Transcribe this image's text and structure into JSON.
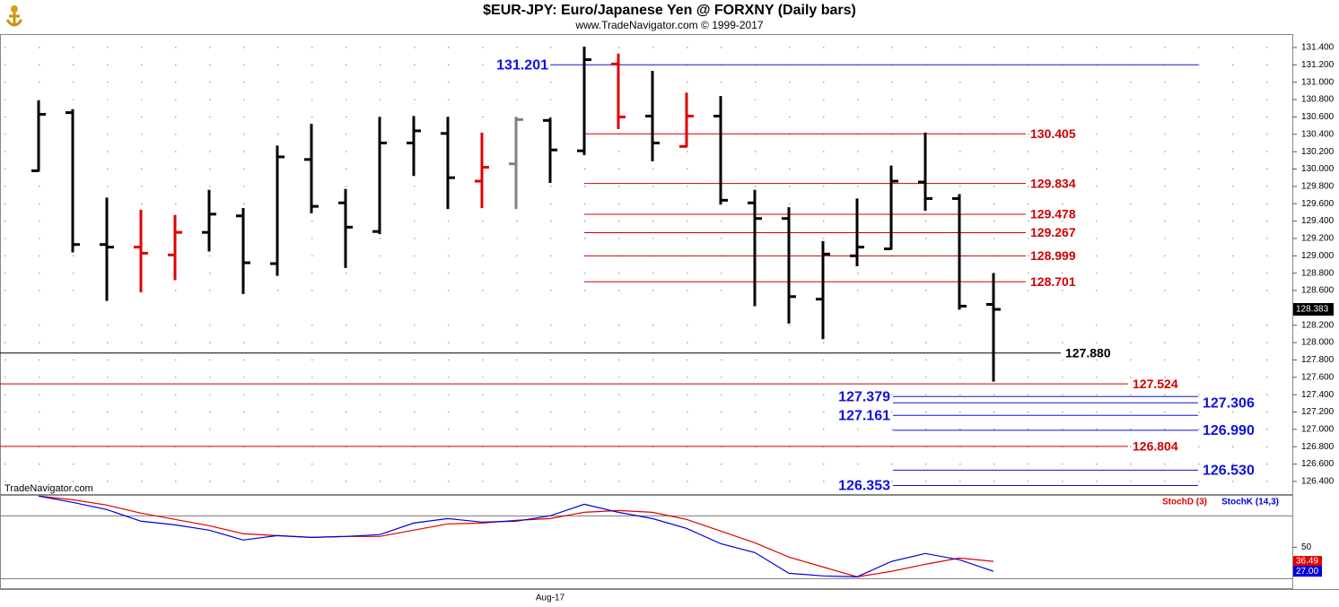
{
  "chart_data": [
    {
      "type": "ohlc",
      "title": "$EUR-JPY:  Euro/Japanese Yen @ FORXNY  (Daily bars)",
      "subtitle": "www.TradeNavigator.com © 1999-2017",
      "watermark": "TradeNavigator.com",
      "categories": [
        null,
        null,
        null,
        null,
        null,
        null,
        null,
        null,
        null,
        null,
        null,
        null,
        null,
        null,
        null,
        "Aug-17",
        null,
        null,
        null,
        null,
        null,
        null,
        null,
        null,
        null,
        null,
        null,
        null,
        null
      ],
      "open": [
        129.98,
        130.65,
        129.13,
        129.1,
        129.01,
        129.27,
        129.46,
        128.91,
        130.11,
        129.61,
        129.28,
        130.3,
        130.41,
        129.86,
        130.06,
        130.56,
        130.21,
        131.21,
        130.61,
        130.26,
        130.61,
        129.61,
        129.43,
        128.5,
        129.0,
        129.08,
        129.85,
        129.66,
        128.44
      ],
      "high": [
        130.78,
        130.68,
        129.66,
        129.52,
        129.46,
        129.75,
        129.54,
        130.26,
        130.51,
        129.76,
        130.59,
        130.6,
        130.59,
        130.41,
        130.59,
        130.58,
        131.4,
        131.32,
        131.12,
        130.87,
        130.83,
        129.75,
        129.55,
        129.16,
        129.65,
        130.03,
        130.41,
        129.7,
        128.79
      ],
      "low": [
        129.98,
        129.05,
        128.49,
        128.59,
        128.73,
        129.06,
        128.57,
        128.78,
        129.5,
        128.87,
        129.26,
        129.93,
        129.55,
        129.56,
        129.55,
        129.85,
        130.17,
        130.47,
        130.1,
        130.26,
        129.6,
        128.43,
        128.23,
        128.05,
        128.89,
        129.08,
        129.53,
        128.39,
        127.56
      ],
      "close": [
        130.63,
        129.13,
        129.1,
        129.03,
        129.27,
        129.48,
        128.92,
        130.14,
        129.57,
        129.33,
        130.3,
        130.44,
        129.9,
        130.02,
        130.57,
        130.22,
        131.26,
        130.6,
        130.3,
        130.61,
        129.64,
        129.43,
        128.53,
        129.02,
        129.1,
        129.86,
        129.66,
        128.42,
        128.383
      ],
      "colors": [
        "#000000",
        "#000000",
        "#000000",
        "#e00000",
        "#e00000",
        "#000000",
        "#000000",
        "#000000",
        "#000000",
        "#000000",
        "#000000",
        "#000000",
        "#000000",
        "#e00000",
        "#808080",
        "#000000",
        "#000000",
        "#e00000",
        "#000000",
        "#e00000",
        "#000000",
        "#000000",
        "#000000",
        "#000000",
        "#000000",
        "#000000",
        "#000000",
        "#000000",
        "#000000"
      ],
      "ylim": [
        126.255,
        131.555
      ],
      "yticks": [
        {
          "value": 126.4,
          "label": "126.400"
        },
        {
          "value": 126.6,
          "label": "126.600"
        },
        {
          "value": 126.8,
          "label": "126.800"
        },
        {
          "value": 127.0,
          "label": "127.000"
        },
        {
          "value": 127.2,
          "label": "127.200"
        },
        {
          "value": 127.4,
          "label": "127.400"
        },
        {
          "value": 127.6,
          "label": "127.600"
        },
        {
          "value": 127.8,
          "label": "127.800"
        },
        {
          "value": 128.0,
          "label": "128.000"
        },
        {
          "value": 128.2,
          "label": "128.200"
        },
        {
          "value": 128.6,
          "label": "128.600"
        },
        {
          "value": 128.8,
          "label": "128.800"
        },
        {
          "value": 129.0,
          "label": "129.000"
        },
        {
          "value": 129.2,
          "label": "129.200"
        },
        {
          "value": 129.4,
          "label": "129.400"
        },
        {
          "value": 129.6,
          "label": "129.600"
        },
        {
          "value": 129.8,
          "label": "129.800"
        },
        {
          "value": 130.0,
          "label": "130.000"
        },
        {
          "value": 130.2,
          "label": "130.200"
        },
        {
          "value": 130.4,
          "label": "130.400"
        },
        {
          "value": 130.6,
          "label": "130.600"
        },
        {
          "value": 130.8,
          "label": "130.800"
        },
        {
          "value": 131.0,
          "label": "131.000"
        },
        {
          "value": 131.2,
          "label": "131.200"
        },
        {
          "value": 131.4,
          "label": "131.400"
        }
      ],
      "grid": true,
      "levels": {
        "values": [
          131.201,
          130.405,
          129.834,
          129.478,
          129.267,
          128.999,
          128.701,
          127.88,
          127.524,
          127.379,
          127.306,
          127.161,
          126.99,
          126.804,
          126.53,
          126.353
        ],
        "value_labels": [
          "131.201",
          "130.405",
          "129.834",
          "129.478",
          "129.267",
          "128.999",
          "128.701",
          "127.880",
          "127.524",
          "127.379",
          "127.306",
          "127.161",
          "126.990",
          "126.804",
          "126.530",
          "126.353"
        ],
        "colors": [
          "#1010e0",
          "#d00000",
          "#d00000",
          "#d00000",
          "#d00000",
          "#d00000",
          "#d00000",
          "#000000",
          "#d00000",
          "#1010e0",
          "#1010e0",
          "#1010e0",
          "#1010e0",
          "#d00000",
          "#1010e0",
          "#1010e0"
        ]
      }
    },
    {
      "type": "line",
      "series": [
        {
          "name": "StochD (3)",
          "color": "#e00000",
          "values": [
            98.9,
            95.4,
            90.3,
            82.6,
            76.6,
            70.6,
            62.9,
            61.1,
            59.4,
            60.3,
            60.3,
            66.3,
            72.3,
            73.1,
            75.7,
            77.4,
            83.4,
            85.1,
            83.4,
            76.6,
            65.4,
            54.3,
            40.6,
            31.1,
            21.7,
            26.9,
            33.7,
            39.7,
            36.49
          ]
        },
        {
          "name": "StochK (14,3)",
          "color": "#0000e0",
          "values": [
            98.9,
            92.9,
            86.0,
            74.9,
            71.4,
            66.3,
            56.9,
            61.1,
            59.4,
            60.3,
            62.0,
            73.1,
            77.4,
            74.0,
            74.9,
            80.0,
            91.1,
            83.4,
            77.4,
            68.0,
            53.4,
            44.9,
            25.1,
            22.6,
            21.7,
            36.3,
            44.0,
            38.0,
            27
          ],
          "value_labels": [
            null,
            null,
            null,
            null,
            null,
            null,
            null,
            null,
            null,
            null,
            null,
            null,
            null,
            null,
            null,
            null,
            null,
            null,
            null,
            null,
            null,
            null,
            null,
            null,
            null,
            null,
            null,
            null,
            "27.00"
          ]
        }
      ],
      "ylim": [
        10,
        100
      ],
      "yticks": [
        50
      ],
      "levels": [
        20,
        80
      ]
    }
  ]
}
